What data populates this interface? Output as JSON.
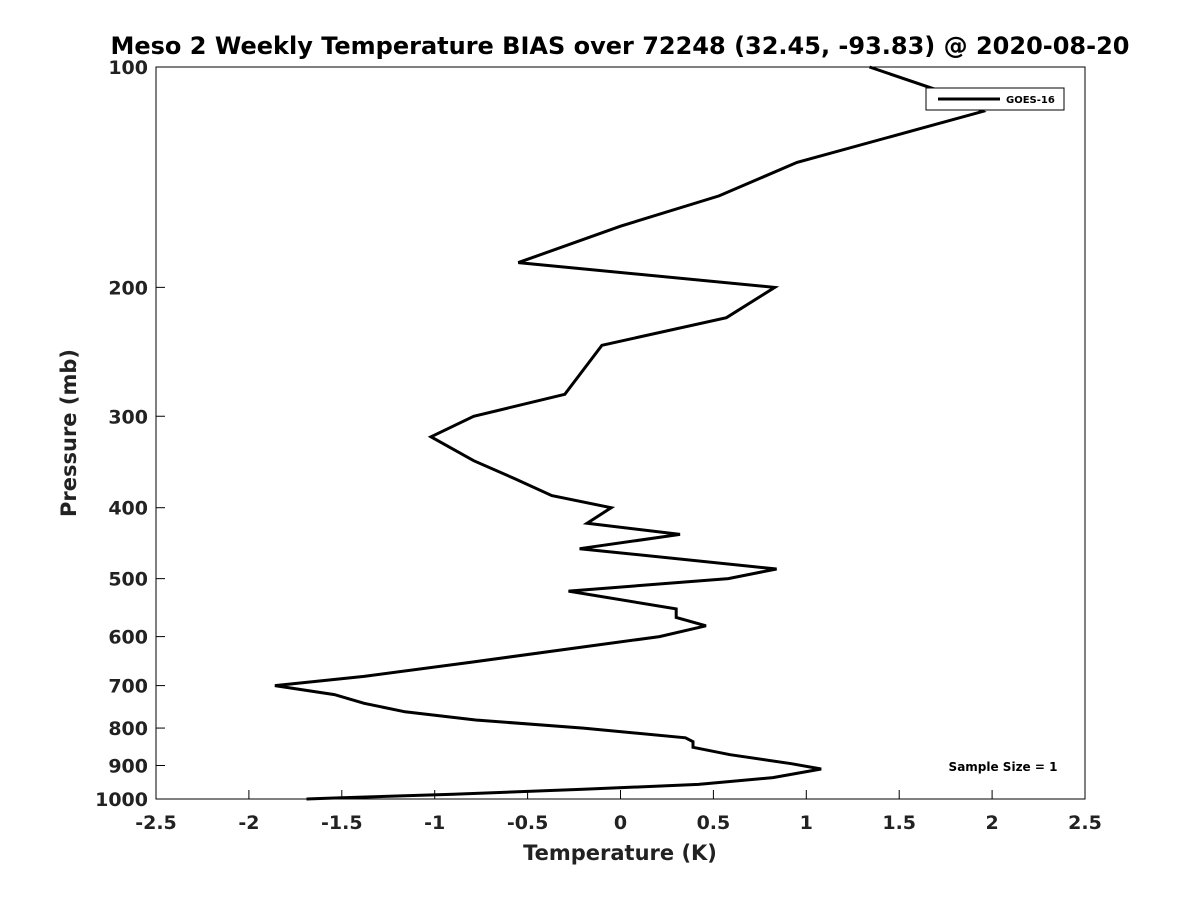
{
  "chart_data": {
    "type": "line",
    "title": "Meso 2 Weekly Temperature BIAS over 72248 (32.45, -93.83) @ 2020-08-20",
    "xlabel": "Temperature (K)",
    "ylabel": "Pressure (mb)",
    "xlim": [
      -2.5,
      2.5
    ],
    "ylim": [
      1000,
      100
    ],
    "y_scale": "log",
    "y_reversed": true,
    "x_ticks": [
      "-2.5",
      "-2",
      "-1.5",
      "-1",
      "-0.5",
      "0",
      "0.5",
      "1",
      "1.5",
      "2",
      "2.5"
    ],
    "y_ticks": [
      "100",
      "200",
      "300",
      "400",
      "500",
      "600",
      "700",
      "800",
      "900",
      "1000"
    ],
    "grid": false,
    "legend_position": "top-right",
    "annotation": "Sample Size = 1",
    "series": [
      {
        "name": "GOES-16",
        "color": "#000000",
        "points": [
          {
            "t": 1.34,
            "p": 100
          },
          {
            "t": 1.82,
            "p": 110
          },
          {
            "t": 1.95,
            "p": 115
          },
          {
            "t": 0.95,
            "p": 135
          },
          {
            "t": 0.53,
            "p": 150
          },
          {
            "t": 0.0,
            "p": 165
          },
          {
            "t": -0.55,
            "p": 185
          },
          {
            "t": 0.83,
            "p": 200
          },
          {
            "t": 0.57,
            "p": 220
          },
          {
            "t": -0.1,
            "p": 240
          },
          {
            "t": -0.3,
            "p": 280
          },
          {
            "t": -0.79,
            "p": 300
          },
          {
            "t": -1.02,
            "p": 320
          },
          {
            "t": -0.79,
            "p": 345
          },
          {
            "t": -0.57,
            "p": 365
          },
          {
            "t": -0.37,
            "p": 385
          },
          {
            "t": -0.05,
            "p": 400
          },
          {
            "t": -0.18,
            "p": 420
          },
          {
            "t": 0.32,
            "p": 435
          },
          {
            "t": -0.22,
            "p": 455
          },
          {
            "t": 0.84,
            "p": 485
          },
          {
            "t": 0.58,
            "p": 500
          },
          {
            "t": -0.28,
            "p": 520
          },
          {
            "t": 0.3,
            "p": 550
          },
          {
            "t": 0.3,
            "p": 565
          },
          {
            "t": 0.46,
            "p": 580
          },
          {
            "t": 0.21,
            "p": 600
          },
          {
            "t": -0.8,
            "p": 650
          },
          {
            "t": -1.38,
            "p": 680
          },
          {
            "t": -1.86,
            "p": 700
          },
          {
            "t": -1.54,
            "p": 720
          },
          {
            "t": -1.38,
            "p": 740
          },
          {
            "t": -1.16,
            "p": 760
          },
          {
            "t": -0.78,
            "p": 780
          },
          {
            "t": -0.2,
            "p": 800
          },
          {
            "t": 0.35,
            "p": 825
          },
          {
            "t": 0.39,
            "p": 835
          },
          {
            "t": 0.39,
            "p": 850
          },
          {
            "t": 0.59,
            "p": 870
          },
          {
            "t": 0.92,
            "p": 895
          },
          {
            "t": 1.08,
            "p": 910
          },
          {
            "t": 0.82,
            "p": 935
          },
          {
            "t": 0.42,
            "p": 955
          },
          {
            "t": -0.2,
            "p": 970
          },
          {
            "t": -0.9,
            "p": 985
          },
          {
            "t": -1.54,
            "p": 997
          },
          {
            "t": -1.69,
            "p": 1000
          }
        ]
      }
    ]
  }
}
